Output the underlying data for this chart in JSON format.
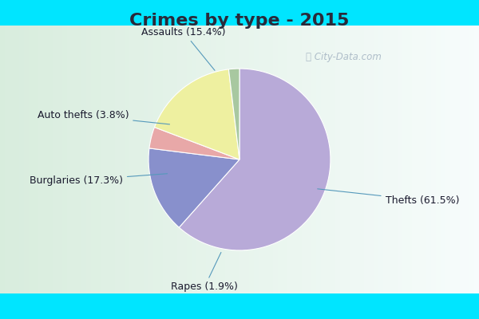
{
  "title": "Crimes by type - 2015",
  "title_fontsize": 16,
  "title_fontweight": "bold",
  "title_color": "#2a2a3a",
  "slices": [
    {
      "label": "Thefts (61.5%)",
      "value": 61.5,
      "color": "#b8aad8"
    },
    {
      "label": "Assaults (15.4%)",
      "value": 15.4,
      "color": "#8890cc"
    },
    {
      "label": "Auto thefts (3.8%)",
      "value": 3.8,
      "color": "#e8a8a8"
    },
    {
      "label": "Burglaries (17.3%)",
      "value": 17.3,
      "color": "#eef0a0"
    },
    {
      "label": "Rapes (1.9%)",
      "value": 1.9,
      "color": "#a8c8a0"
    }
  ],
  "bg_cyan": "#00e5ff",
  "bg_main": "#d8eed8",
  "startangle": 90,
  "watermark": "ⓘ City-Data.com",
  "label_fontsize": 9,
  "label_color": "#1a1a2e",
  "arrow_color": "#5599bb"
}
